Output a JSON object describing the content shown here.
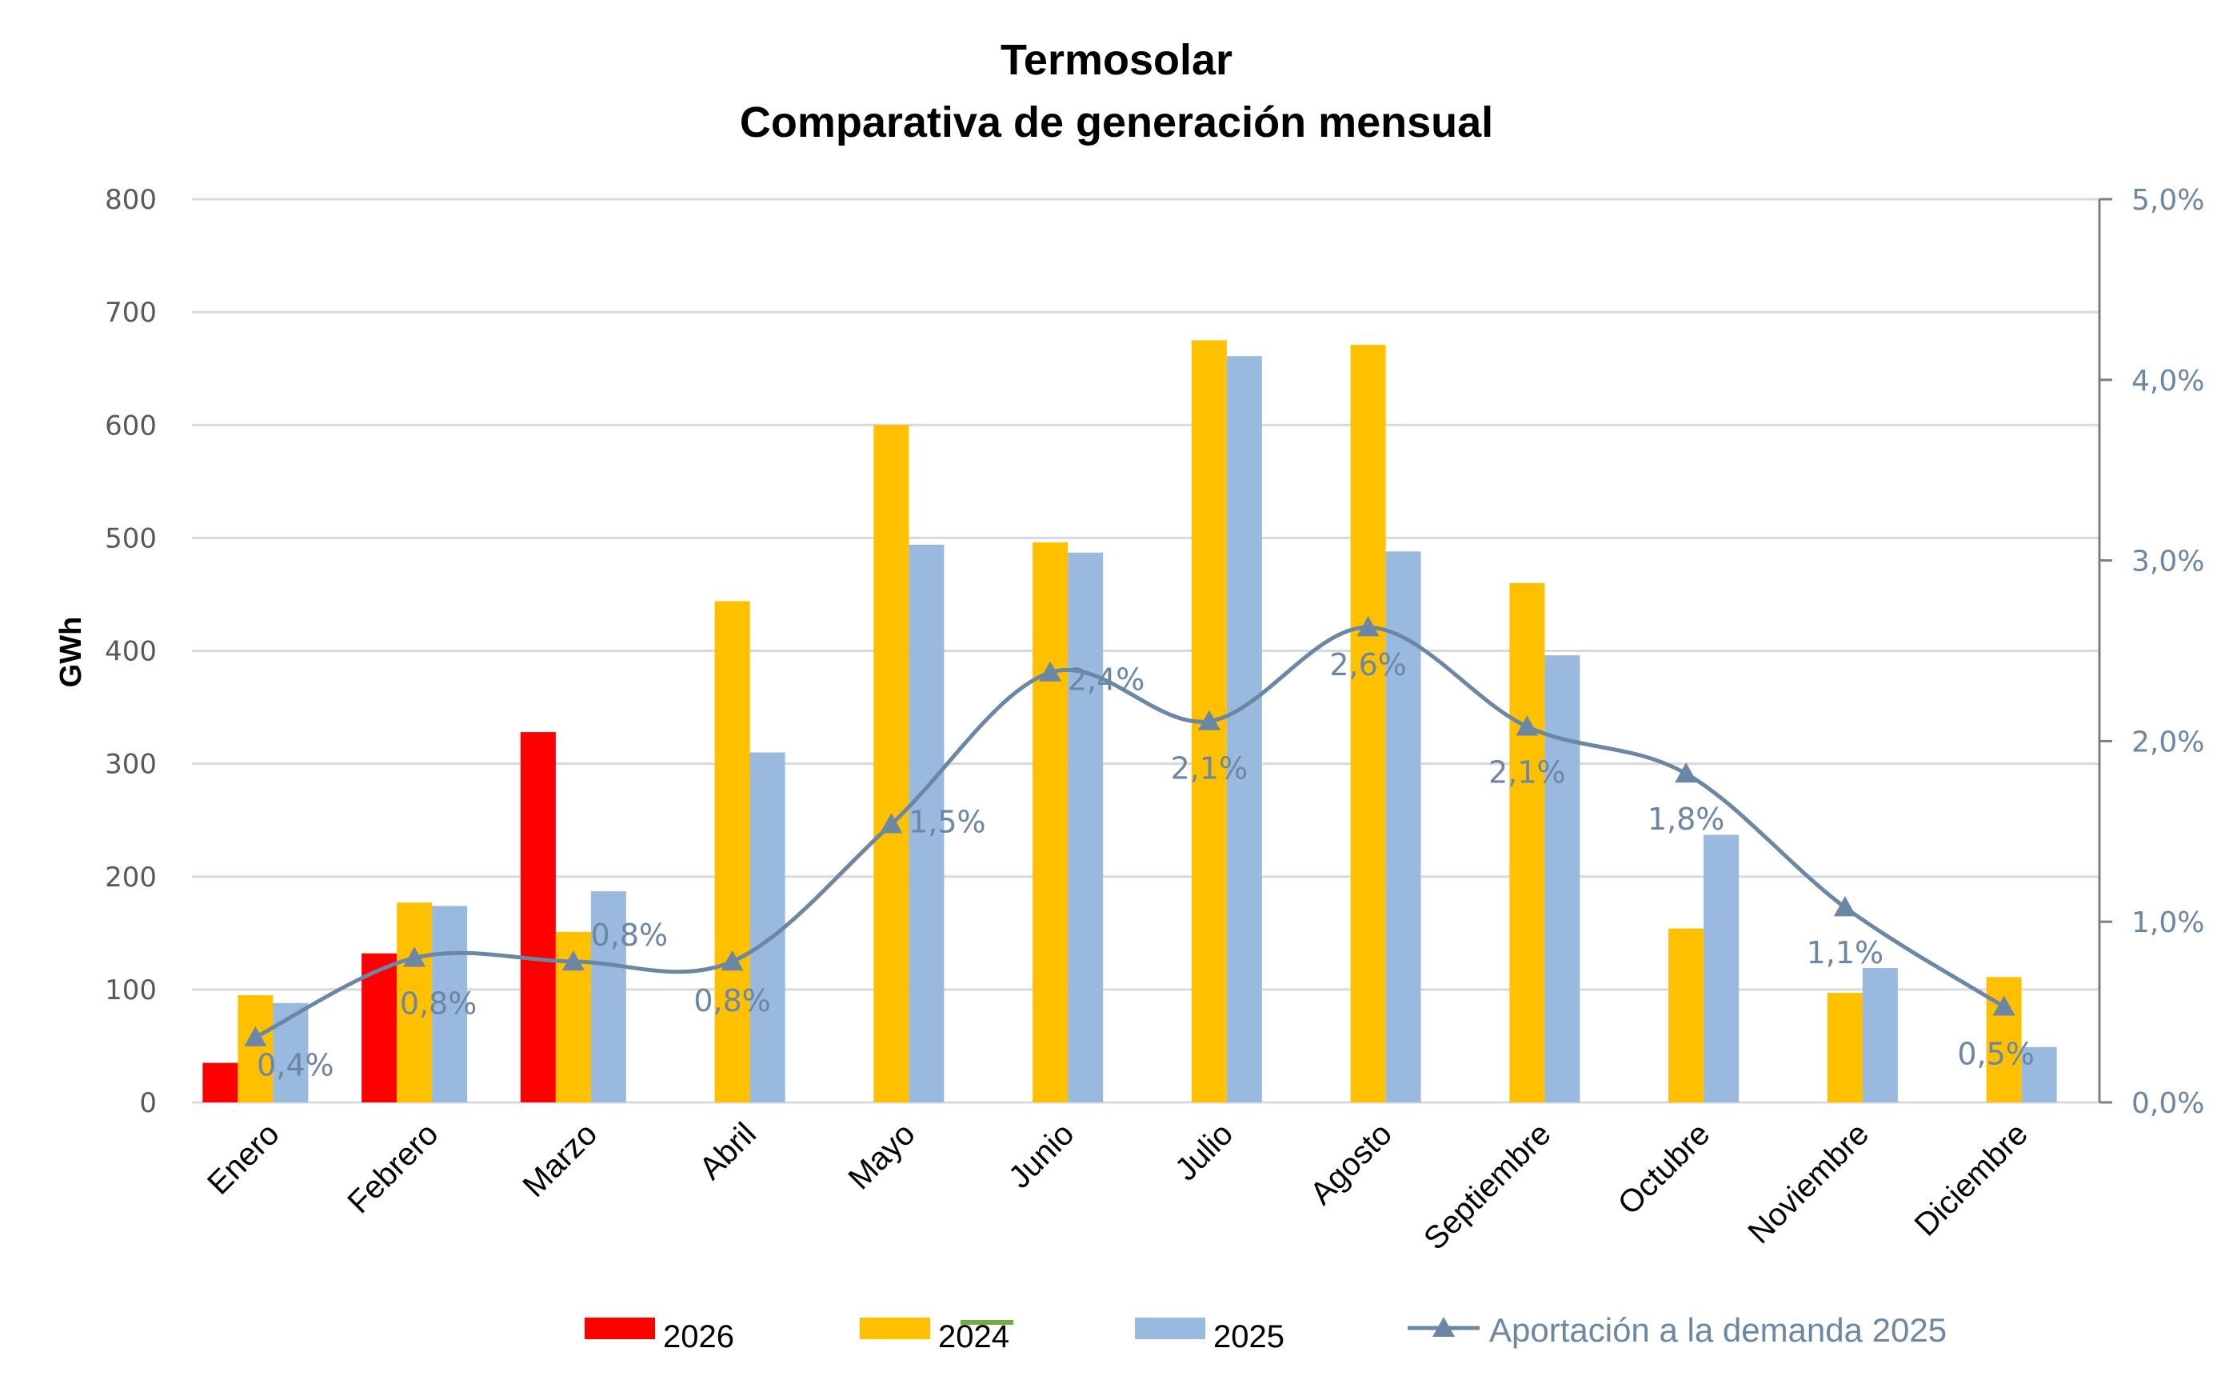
{
  "chart_data": {
    "type": "bar",
    "title": "Termosolar",
    "subtitle": "Comparativa de generación mensual",
    "xlabel": "",
    "ylabel": "GWh",
    "y2label": "",
    "categories": [
      "Enero",
      "Febrero",
      "Marzo",
      "Abril",
      "Mayo",
      "Junio",
      "Julio",
      "Agosto",
      "Septiembre",
      "Octubre",
      "Noviembre",
      "Diciembre"
    ],
    "ylim": [
      0,
      800
    ],
    "yticks": [
      "0",
      "100",
      "200",
      "300",
      "400",
      "500",
      "600",
      "700",
      "800"
    ],
    "y2lim": [
      0,
      5
    ],
    "y2ticks": [
      "0,0%",
      "1,0%",
      "2,0%",
      "3,0%",
      "4,0%",
      "5,0%"
    ],
    "grid": true,
    "legend_position": "bottom",
    "series": [
      {
        "name": "2026",
        "kind": "bar",
        "color": "#ff0000",
        "values": [
          35,
          132,
          328,
          null,
          null,
          null,
          null,
          null,
          null,
          null,
          null,
          null
        ]
      },
      {
        "name": "2024",
        "kind": "bar",
        "color": "#ffc000",
        "values": [
          95,
          177,
          151,
          444,
          600,
          496,
          675,
          671,
          460,
          154,
          97,
          111
        ]
      },
      {
        "name": "2025",
        "kind": "bar",
        "color": "#99b9df",
        "values": [
          88,
          174,
          187,
          310,
          494,
          487,
          661,
          488,
          396,
          237,
          119,
          49
        ]
      },
      {
        "name": "Aportación a la demanda 2025",
        "kind": "line",
        "axis": "right",
        "color": "#6b87a3",
        "marker": "triangle",
        "smooth": true,
        "values": [
          0.36,
          0.8,
          0.78,
          0.78,
          1.54,
          2.38,
          2.11,
          2.63,
          2.08,
          1.82,
          1.08,
          0.53
        ],
        "labels": [
          "0,4%",
          "0,8%",
          "0,8%",
          "0,8%",
          "1,5%",
          "2,4%",
          "2,1%",
          "2,6%",
          "2,1%",
          "1,8%",
          "1,1%",
          "0,5%"
        ]
      }
    ],
    "legend": [
      {
        "label": "2026",
        "color": "#ff0000",
        "kind": "box"
      },
      {
        "label": "2024",
        "color": "#ffc000",
        "kind": "box"
      },
      {
        "label": "2025",
        "color": "#99b9df",
        "kind": "box"
      },
      {
        "label": "Aportación a la demanda 2025",
        "color": "#6b87a3",
        "kind": "line-triangle"
      }
    ]
  }
}
